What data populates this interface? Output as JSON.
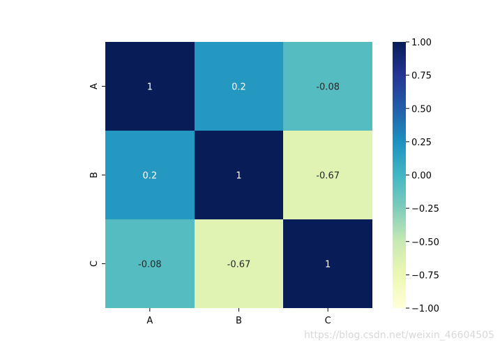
{
  "chart_data": {
    "type": "heatmap",
    "title": "",
    "xlabel": "",
    "ylabel": "",
    "x_categories": [
      "A",
      "B",
      "C"
    ],
    "y_categories": [
      "A",
      "B",
      "C"
    ],
    "values": [
      [
        1,
        0.2,
        -0.08
      ],
      [
        0.2,
        1,
        -0.67
      ],
      [
        -0.08,
        -0.67,
        1
      ]
    ],
    "cell_labels": [
      [
        "1",
        "0.2",
        "-0.08"
      ],
      [
        "0.2",
        "1",
        "-0.67"
      ],
      [
        "-0.08",
        "-0.67",
        "1"
      ]
    ],
    "colormap": "YlGnBu",
    "colorbar": {
      "vmin": -1,
      "vmax": 1,
      "ticks": [
        1.0,
        0.75,
        0.5,
        0.25,
        0.0,
        -0.25,
        -0.5,
        -0.75,
        -1.0
      ],
      "tick_labels": [
        "1.00",
        "0.75",
        "0.50",
        "0.25",
        "0.00",
        "−0.25",
        "−0.50",
        "−0.75",
        "−1.00"
      ],
      "placement": "right"
    },
    "grid": false
  },
  "colors": {
    "label_light": "#ffffff",
    "label_dark": "#262626",
    "tick": "#000000"
  },
  "watermark": "https://blog.csdn.net/weixin_46604505"
}
